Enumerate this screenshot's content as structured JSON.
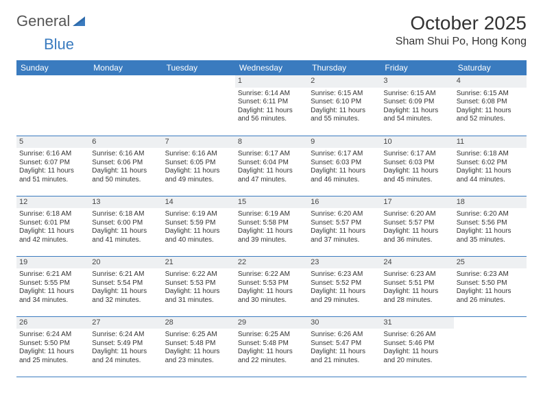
{
  "brand": {
    "part1": "General",
    "part2": "Blue"
  },
  "title": "October 2025",
  "location": "Sham Shui Po, Hong Kong",
  "colors": {
    "header_bg": "#3a7bbf",
    "header_text": "#ffffff",
    "daynum_bg": "#eef0f2",
    "border": "#3a7bbf",
    "text": "#333333",
    "page_bg": "#ffffff"
  },
  "weekdays": [
    "Sunday",
    "Monday",
    "Tuesday",
    "Wednesday",
    "Thursday",
    "Friday",
    "Saturday"
  ],
  "weeks": [
    [
      {
        "day": "",
        "sunrise": "",
        "sunset": "",
        "daylight": ""
      },
      {
        "day": "",
        "sunrise": "",
        "sunset": "",
        "daylight": ""
      },
      {
        "day": "",
        "sunrise": "",
        "sunset": "",
        "daylight": ""
      },
      {
        "day": "1",
        "sunrise": "Sunrise: 6:14 AM",
        "sunset": "Sunset: 6:11 PM",
        "daylight": "Daylight: 11 hours and 56 minutes."
      },
      {
        "day": "2",
        "sunrise": "Sunrise: 6:15 AM",
        "sunset": "Sunset: 6:10 PM",
        "daylight": "Daylight: 11 hours and 55 minutes."
      },
      {
        "day": "3",
        "sunrise": "Sunrise: 6:15 AM",
        "sunset": "Sunset: 6:09 PM",
        "daylight": "Daylight: 11 hours and 54 minutes."
      },
      {
        "day": "4",
        "sunrise": "Sunrise: 6:15 AM",
        "sunset": "Sunset: 6:08 PM",
        "daylight": "Daylight: 11 hours and 52 minutes."
      }
    ],
    [
      {
        "day": "5",
        "sunrise": "Sunrise: 6:16 AM",
        "sunset": "Sunset: 6:07 PM",
        "daylight": "Daylight: 11 hours and 51 minutes."
      },
      {
        "day": "6",
        "sunrise": "Sunrise: 6:16 AM",
        "sunset": "Sunset: 6:06 PM",
        "daylight": "Daylight: 11 hours and 50 minutes."
      },
      {
        "day": "7",
        "sunrise": "Sunrise: 6:16 AM",
        "sunset": "Sunset: 6:05 PM",
        "daylight": "Daylight: 11 hours and 49 minutes."
      },
      {
        "day": "8",
        "sunrise": "Sunrise: 6:17 AM",
        "sunset": "Sunset: 6:04 PM",
        "daylight": "Daylight: 11 hours and 47 minutes."
      },
      {
        "day": "9",
        "sunrise": "Sunrise: 6:17 AM",
        "sunset": "Sunset: 6:03 PM",
        "daylight": "Daylight: 11 hours and 46 minutes."
      },
      {
        "day": "10",
        "sunrise": "Sunrise: 6:17 AM",
        "sunset": "Sunset: 6:03 PM",
        "daylight": "Daylight: 11 hours and 45 minutes."
      },
      {
        "day": "11",
        "sunrise": "Sunrise: 6:18 AM",
        "sunset": "Sunset: 6:02 PM",
        "daylight": "Daylight: 11 hours and 44 minutes."
      }
    ],
    [
      {
        "day": "12",
        "sunrise": "Sunrise: 6:18 AM",
        "sunset": "Sunset: 6:01 PM",
        "daylight": "Daylight: 11 hours and 42 minutes."
      },
      {
        "day": "13",
        "sunrise": "Sunrise: 6:18 AM",
        "sunset": "Sunset: 6:00 PM",
        "daylight": "Daylight: 11 hours and 41 minutes."
      },
      {
        "day": "14",
        "sunrise": "Sunrise: 6:19 AM",
        "sunset": "Sunset: 5:59 PM",
        "daylight": "Daylight: 11 hours and 40 minutes."
      },
      {
        "day": "15",
        "sunrise": "Sunrise: 6:19 AM",
        "sunset": "Sunset: 5:58 PM",
        "daylight": "Daylight: 11 hours and 39 minutes."
      },
      {
        "day": "16",
        "sunrise": "Sunrise: 6:20 AM",
        "sunset": "Sunset: 5:57 PM",
        "daylight": "Daylight: 11 hours and 37 minutes."
      },
      {
        "day": "17",
        "sunrise": "Sunrise: 6:20 AM",
        "sunset": "Sunset: 5:57 PM",
        "daylight": "Daylight: 11 hours and 36 minutes."
      },
      {
        "day": "18",
        "sunrise": "Sunrise: 6:20 AM",
        "sunset": "Sunset: 5:56 PM",
        "daylight": "Daylight: 11 hours and 35 minutes."
      }
    ],
    [
      {
        "day": "19",
        "sunrise": "Sunrise: 6:21 AM",
        "sunset": "Sunset: 5:55 PM",
        "daylight": "Daylight: 11 hours and 34 minutes."
      },
      {
        "day": "20",
        "sunrise": "Sunrise: 6:21 AM",
        "sunset": "Sunset: 5:54 PM",
        "daylight": "Daylight: 11 hours and 32 minutes."
      },
      {
        "day": "21",
        "sunrise": "Sunrise: 6:22 AM",
        "sunset": "Sunset: 5:53 PM",
        "daylight": "Daylight: 11 hours and 31 minutes."
      },
      {
        "day": "22",
        "sunrise": "Sunrise: 6:22 AM",
        "sunset": "Sunset: 5:53 PM",
        "daylight": "Daylight: 11 hours and 30 minutes."
      },
      {
        "day": "23",
        "sunrise": "Sunrise: 6:23 AM",
        "sunset": "Sunset: 5:52 PM",
        "daylight": "Daylight: 11 hours and 29 minutes."
      },
      {
        "day": "24",
        "sunrise": "Sunrise: 6:23 AM",
        "sunset": "Sunset: 5:51 PM",
        "daylight": "Daylight: 11 hours and 28 minutes."
      },
      {
        "day": "25",
        "sunrise": "Sunrise: 6:23 AM",
        "sunset": "Sunset: 5:50 PM",
        "daylight": "Daylight: 11 hours and 26 minutes."
      }
    ],
    [
      {
        "day": "26",
        "sunrise": "Sunrise: 6:24 AM",
        "sunset": "Sunset: 5:50 PM",
        "daylight": "Daylight: 11 hours and 25 minutes."
      },
      {
        "day": "27",
        "sunrise": "Sunrise: 6:24 AM",
        "sunset": "Sunset: 5:49 PM",
        "daylight": "Daylight: 11 hours and 24 minutes."
      },
      {
        "day": "28",
        "sunrise": "Sunrise: 6:25 AM",
        "sunset": "Sunset: 5:48 PM",
        "daylight": "Daylight: 11 hours and 23 minutes."
      },
      {
        "day": "29",
        "sunrise": "Sunrise: 6:25 AM",
        "sunset": "Sunset: 5:48 PM",
        "daylight": "Daylight: 11 hours and 22 minutes."
      },
      {
        "day": "30",
        "sunrise": "Sunrise: 6:26 AM",
        "sunset": "Sunset: 5:47 PM",
        "daylight": "Daylight: 11 hours and 21 minutes."
      },
      {
        "day": "31",
        "sunrise": "Sunrise: 6:26 AM",
        "sunset": "Sunset: 5:46 PM",
        "daylight": "Daylight: 11 hours and 20 minutes."
      },
      {
        "day": "",
        "sunrise": "",
        "sunset": "",
        "daylight": ""
      }
    ]
  ]
}
